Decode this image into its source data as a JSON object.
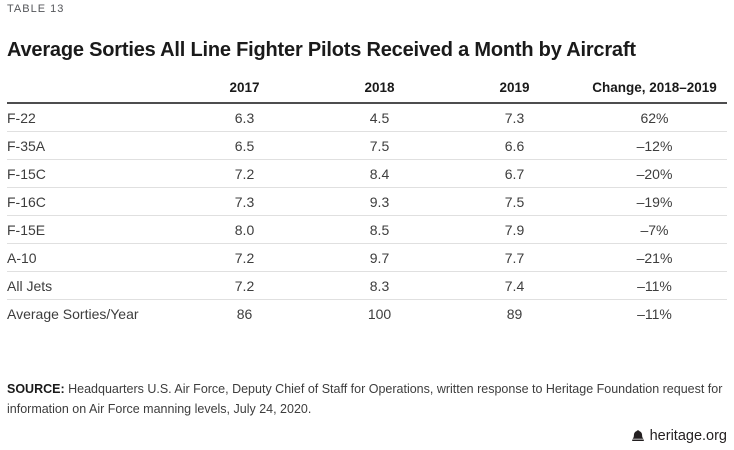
{
  "table_label": "TABLE 13",
  "title": "Average Sorties All Line Fighter Pilots Received a Month by Aircraft",
  "chart_data": {
    "type": "table",
    "title": "Average Sorties All Line Fighter Pilots Received a Month by Aircraft",
    "table_number": "TABLE 13",
    "columns": [
      "",
      "2017",
      "2018",
      "2019",
      "Change, 2018–2019"
    ],
    "rows": [
      [
        "F-22",
        "6.3",
        "4.5",
        "7.3",
        "62%"
      ],
      [
        "F-35A",
        "6.5",
        "7.5",
        "6.6",
        "–12%"
      ],
      [
        "F-15C",
        "7.2",
        "8.4",
        "6.7",
        "–20%"
      ],
      [
        "F-16C",
        "7.3",
        "9.3",
        "7.5",
        "–19%"
      ],
      [
        "F-15E",
        "8.0",
        "8.5",
        "7.9",
        "–7%"
      ],
      [
        "A-10",
        "7.2",
        "9.7",
        "7.7",
        "–21%"
      ],
      [
        "All Jets",
        "7.2",
        "8.3",
        "7.4",
        "–11%"
      ],
      [
        "Average Sorties/Year",
        "86",
        "100",
        "89",
        "–11%"
      ]
    ]
  },
  "source": {
    "label": "SOURCE:",
    "text": " Headquarters U.S. Air Force, Deputy Chief of Staff for Operations, written response to Heritage Foundation request for information on Air Force manning levels, July 24, 2020."
  },
  "footer": {
    "site": "heritage.org",
    "logo_icon": "liberty-bell-icon"
  },
  "colors": {
    "label_gray": "#54565a",
    "text_dark": "#1a1a1a",
    "cell_text": "#3d3d3d",
    "header_rule": "#4d4d4f",
    "row_rule": "#e0e0e0",
    "background": "#ffffff"
  }
}
